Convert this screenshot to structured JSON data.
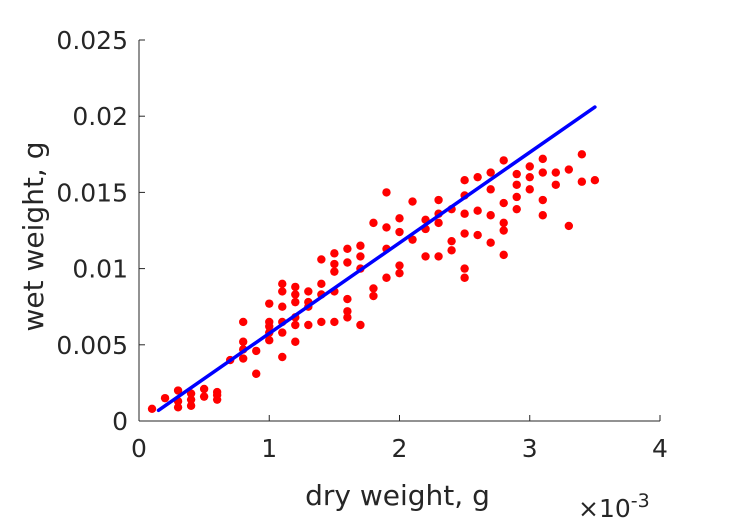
{
  "chart_data": {
    "type": "scatter",
    "title": "",
    "xlabel": "dry weight, g",
    "ylabel": "wet weight, g",
    "xlim": [
      0,
      0.004
    ],
    "ylim": [
      0,
      0.025
    ],
    "x_exponent_label": "×10",
    "x_exponent_power": "-3",
    "x_ticks": [
      0,
      0.001,
      0.002,
      0.003,
      0.004
    ],
    "x_tick_labels": [
      "0",
      "1",
      "2",
      "3",
      "4"
    ],
    "y_ticks": [
      0,
      0.005,
      0.01,
      0.015,
      0.02,
      0.025
    ],
    "y_tick_labels": [
      "0",
      "0.005",
      "0.01",
      "0.015",
      "0.02",
      "0.025"
    ],
    "grid": false,
    "legend": "none",
    "series": [
      {
        "kind": "scatter",
        "color": "#ff0000",
        "x": [
          0.0001,
          0.0002,
          0.0003,
          0.0003,
          0.0003,
          0.0004,
          0.0004,
          0.0004,
          0.0005,
          0.0005,
          0.0006,
          0.0006,
          0.0006,
          0.0007,
          0.0008,
          0.0008,
          0.0008,
          0.0008,
          0.0009,
          0.0009,
          0.001,
          0.001,
          0.001,
          0.001,
          0.001,
          0.0011,
          0.0011,
          0.0011,
          0.0011,
          0.0011,
          0.0011,
          0.0012,
          0.0012,
          0.0012,
          0.0012,
          0.0012,
          0.0012,
          0.0013,
          0.0013,
          0.0013,
          0.0013,
          0.0014,
          0.0014,
          0.0014,
          0.0014,
          0.0015,
          0.0015,
          0.0015,
          0.0015,
          0.0015,
          0.0016,
          0.0016,
          0.0016,
          0.0016,
          0.0016,
          0.0017,
          0.0017,
          0.0017,
          0.0017,
          0.0018,
          0.0018,
          0.0018,
          0.0019,
          0.0019,
          0.0019,
          0.0019,
          0.002,
          0.002,
          0.002,
          0.002,
          0.0021,
          0.0021,
          0.0022,
          0.0022,
          0.0022,
          0.0023,
          0.0023,
          0.0023,
          0.0023,
          0.0024,
          0.0024,
          0.0024,
          0.0025,
          0.0025,
          0.0025,
          0.0025,
          0.0025,
          0.0025,
          0.0026,
          0.0026,
          0.0026,
          0.0027,
          0.0027,
          0.0027,
          0.0027,
          0.0028,
          0.0028,
          0.0028,
          0.0028,
          0.0028,
          0.0029,
          0.0029,
          0.0029,
          0.0029,
          0.003,
          0.003,
          0.003,
          0.0031,
          0.0031,
          0.0031,
          0.0031,
          0.0032,
          0.0032,
          0.0033,
          0.0033,
          0.0034,
          0.0034,
          0.0035
        ],
        "y": [
          0.0008,
          0.0015,
          0.002,
          0.0013,
          0.0009,
          0.0018,
          0.0014,
          0.001,
          0.0021,
          0.0016,
          0.0019,
          0.0014,
          0.0017,
          0.004,
          0.0065,
          0.0052,
          0.0047,
          0.0041,
          0.0031,
          0.0046,
          0.0077,
          0.0065,
          0.0062,
          0.0058,
          0.0053,
          0.009,
          0.0085,
          0.0075,
          0.0065,
          0.0058,
          0.0042,
          0.0088,
          0.0083,
          0.0078,
          0.0068,
          0.0052,
          0.0063,
          0.0085,
          0.0078,
          0.0075,
          0.0063,
          0.0106,
          0.009,
          0.0083,
          0.0065,
          0.011,
          0.0103,
          0.0098,
          0.0085,
          0.0065,
          0.0113,
          0.0104,
          0.008,
          0.0072,
          0.0068,
          0.0115,
          0.0108,
          0.01,
          0.0063,
          0.013,
          0.0087,
          0.0082,
          0.015,
          0.0127,
          0.0113,
          0.0094,
          0.0133,
          0.0124,
          0.0102,
          0.0097,
          0.0144,
          0.0119,
          0.0132,
          0.0126,
          0.0108,
          0.0145,
          0.0136,
          0.013,
          0.0108,
          0.0139,
          0.0118,
          0.0112,
          0.0158,
          0.0148,
          0.0136,
          0.0123,
          0.01,
          0.0094,
          0.016,
          0.0138,
          0.0122,
          0.0163,
          0.0152,
          0.0135,
          0.0117,
          0.0171,
          0.0143,
          0.013,
          0.0125,
          0.0109,
          0.0162,
          0.0155,
          0.0147,
          0.0139,
          0.0167,
          0.016,
          0.0152,
          0.0172,
          0.0163,
          0.0145,
          0.0135,
          0.0163,
          0.0155,
          0.0165,
          0.0128,
          0.0175,
          0.0157,
          0.0158
        ]
      },
      {
        "kind": "line",
        "name": "",
        "color": "#0000ff",
        "x": [
          0.00015,
          0.0035
        ],
        "y": [
          0.0007,
          0.0206
        ]
      }
    ]
  }
}
